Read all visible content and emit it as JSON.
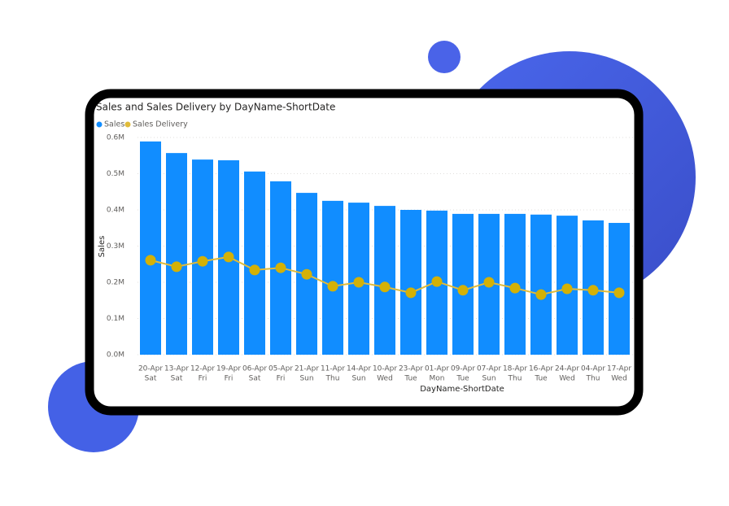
{
  "chart_data": {
    "type": "bar_line",
    "title": "Sales and Sales Delivery by DayName-ShortDate",
    "x_label": "DayName-ShortDate",
    "y_label": "Sales",
    "categories": [
      [
        "20-Apr",
        "Sat"
      ],
      [
        "13-Apr",
        "Sat"
      ],
      [
        "12-Apr",
        "Fri"
      ],
      [
        "19-Apr",
        "Fri"
      ],
      [
        "06-Apr",
        "Sat"
      ],
      [
        "05-Apr",
        "Fri"
      ],
      [
        "21-Apr",
        "Sun"
      ],
      [
        "11-Apr",
        "Thu"
      ],
      [
        "14-Apr",
        "Sun"
      ],
      [
        "10-Apr",
        "Wed"
      ],
      [
        "23-Apr",
        "Tue"
      ],
      [
        "01-Apr",
        "Mon"
      ],
      [
        "09-Apr",
        "Tue"
      ],
      [
        "07-Apr",
        "Sun"
      ],
      [
        "18-Apr",
        "Thu"
      ],
      [
        "16-Apr",
        "Tue"
      ],
      [
        "24-Apr",
        "Wed"
      ],
      [
        "04-Apr",
        "Thu"
      ],
      [
        "17-Apr",
        "Wed"
      ]
    ],
    "series": [
      {
        "name": "Sales",
        "color": "#118dff",
        "kind": "bar",
        "values": [
          589000,
          557000,
          539000,
          537000,
          506000,
          479000,
          447000,
          425000,
          420000,
          411000,
          400000,
          398000,
          389000,
          389000,
          389000,
          387000,
          384000,
          371000,
          364000
        ]
      },
      {
        "name": "Sales Delivery",
        "color": "#e0bb3a",
        "kind": "line",
        "values": [
          261000,
          243000,
          258000,
          270000,
          234000,
          240000,
          222000,
          189000,
          200000,
          187000,
          171000,
          202000,
          178000,
          200000,
          184000,
          166000,
          182000,
          178000,
          171000
        ]
      }
    ],
    "ylim": [
      0,
      600000
    ],
    "yticks": [
      {
        "value": 0,
        "label": "0.0M"
      },
      {
        "value": 100000,
        "label": "0.1M"
      },
      {
        "value": 200000,
        "label": "0.2M"
      },
      {
        "value": 300000,
        "label": "0.3M"
      },
      {
        "value": 400000,
        "label": "0.4M"
      },
      {
        "value": 500000,
        "label": "0.5M"
      },
      {
        "value": 600000,
        "label": "0.6M"
      }
    ],
    "grid": true
  }
}
